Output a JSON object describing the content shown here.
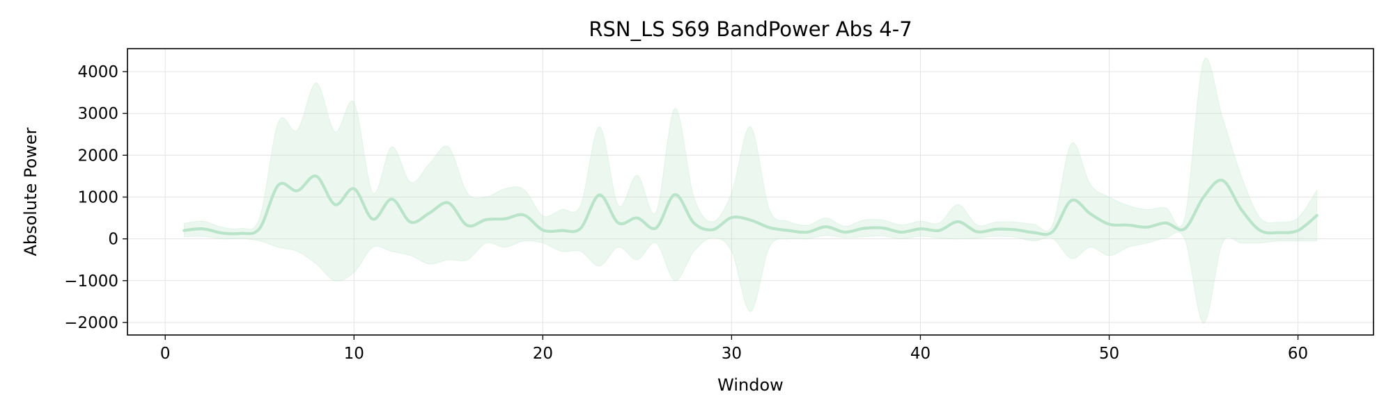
{
  "chart_data": {
    "type": "line",
    "title": "RSN_LS S69 BandPower Abs 4-7",
    "xlabel": "Window",
    "ylabel": "Absolute Power",
    "xlim": [
      -2,
      64
    ],
    "ylim": [
      -2300,
      4550
    ],
    "xticks": [
      0,
      10,
      20,
      30,
      40,
      50,
      60
    ],
    "yticks": [
      -2000,
      -1000,
      0,
      1000,
      2000,
      3000,
      4000
    ],
    "ytick_labels": [
      "−2000",
      "−1000",
      "0",
      "1000",
      "2000",
      "3000",
      "4000"
    ],
    "grid": true,
    "color": "#b9e4c9",
    "series": [
      {
        "name": "",
        "x": [
          1,
          2,
          3,
          4,
          5,
          6,
          7,
          8,
          9,
          10,
          11,
          12,
          13,
          14,
          15,
          16,
          17,
          18,
          19,
          20,
          21,
          22,
          23,
          24,
          25,
          26,
          27,
          28,
          29,
          30,
          31,
          32,
          33,
          34,
          35,
          36,
          37,
          38,
          39,
          40,
          41,
          42,
          43,
          44,
          45,
          46,
          47,
          48,
          49,
          50,
          51,
          52,
          53,
          54,
          55,
          56,
          57,
          58,
          59,
          60,
          61
        ],
        "mean": [
          200,
          240,
          140,
          130,
          250,
          1290,
          1150,
          1500,
          820,
          1200,
          470,
          950,
          400,
          620,
          860,
          320,
          460,
          480,
          570,
          210,
          200,
          250,
          1050,
          380,
          500,
          260,
          1060,
          380,
          220,
          510,
          450,
          270,
          200,
          160,
          290,
          160,
          250,
          260,
          160,
          240,
          200,
          410,
          170,
          230,
          220,
          150,
          170,
          920,
          600,
          350,
          330,
          280,
          380,
          240,
          1000,
          1400,
          700,
          200,
          150,
          200,
          560
        ],
        "upper": [
          370,
          420,
          280,
          250,
          500,
          2800,
          2600,
          3730,
          2560,
          3260,
          1100,
          2200,
          1350,
          1800,
          2200,
          1100,
          1000,
          1200,
          1180,
          550,
          700,
          800,
          2680,
          800,
          1520,
          640,
          3120,
          1000,
          410,
          1100,
          2680,
          700,
          420,
          320,
          500,
          300,
          450,
          450,
          330,
          420,
          380,
          820,
          330,
          400,
          400,
          350,
          330,
          2280,
          1300,
          1000,
          800,
          700,
          740,
          500,
          4250,
          2900,
          1500,
          500,
          400,
          500,
          1160
        ],
        "lower": [
          50,
          60,
          0,
          10,
          -50,
          -200,
          -300,
          -600,
          -1000,
          -800,
          -200,
          -300,
          -400,
          -600,
          -500,
          -500,
          -100,
          -200,
          -50,
          -100,
          -300,
          -300,
          -650,
          -200,
          -500,
          -100,
          -1000,
          -300,
          30,
          -300,
          -1740,
          -200,
          0,
          0,
          80,
          30,
          50,
          70,
          0,
          60,
          20,
          0,
          20,
          60,
          40,
          -50,
          10,
          -470,
          -200,
          -400,
          -200,
          -100,
          20,
          0,
          -2020,
          -100,
          -100,
          -100,
          -50,
          -50,
          -50
        ]
      }
    ]
  }
}
